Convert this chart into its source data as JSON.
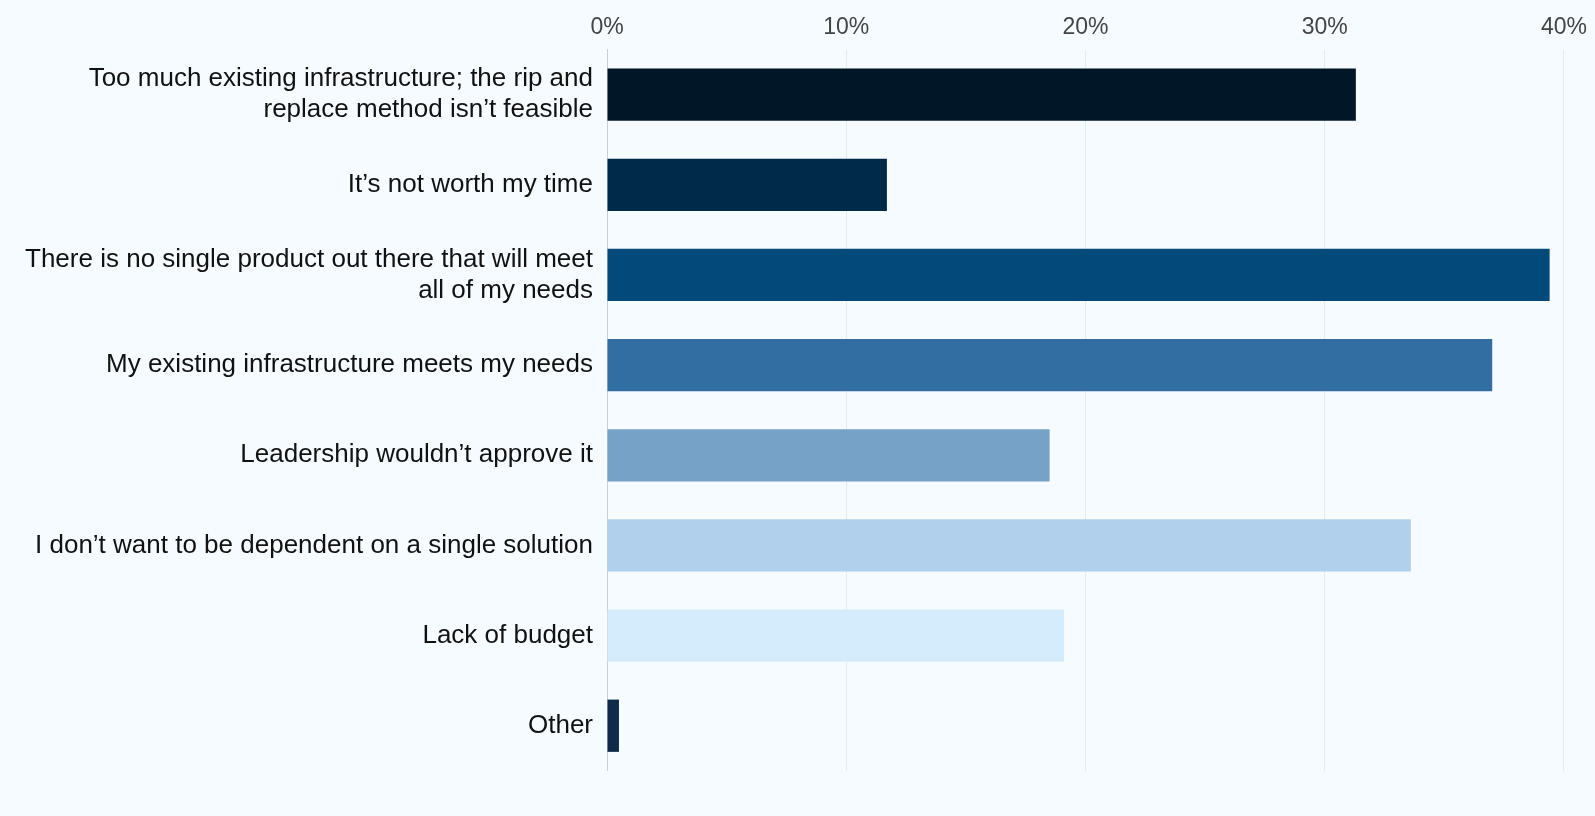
{
  "chart_data": {
    "type": "bar",
    "orientation": "horizontal",
    "categories": [
      "Too much existing infrastructure; the rip and replace method isn’t feasible",
      "It’s not worth my time",
      "There is no single product out there that will meet all of my needs",
      "My existing infrastructure meets my needs",
      "Leadership wouldn’t approve it",
      "I don’t want to be dependent on a single solution",
      "Lack of budget",
      "Other"
    ],
    "values": [
      31.3,
      11.7,
      39.4,
      37.0,
      18.5,
      33.6,
      19.1,
      0.5
    ],
    "colors": [
      "#011627",
      "#002a4a",
      "#034a7a",
      "#336ea3",
      "#76a2c8",
      "#b0d0ec",
      "#d4ecfc",
      "#0f2a4a"
    ],
    "xlim": [
      0,
      40
    ],
    "xticks": [
      {
        "value": 0,
        "label": "0%"
      },
      {
        "value": 10,
        "label": "10%"
      },
      {
        "value": 20,
        "label": "20%"
      },
      {
        "value": 30,
        "label": "30%"
      },
      {
        "value": 40,
        "label": "40%"
      }
    ],
    "grid": "x",
    "legend": false
  }
}
